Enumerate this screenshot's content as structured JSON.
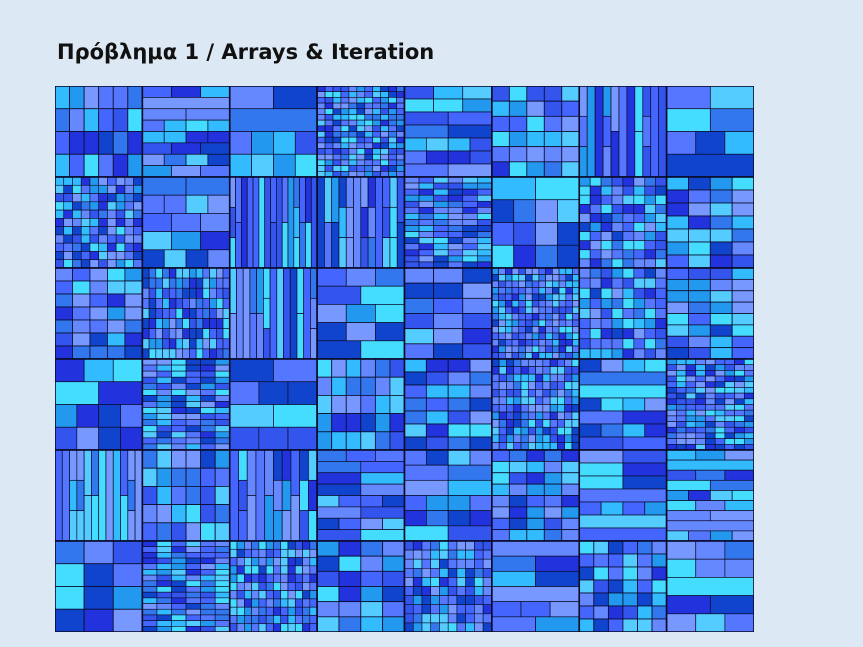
{
  "slide": {
    "title": "Πρόβλημα 1 / Arrays & Iteration"
  },
  "treemap": {
    "palette": [
      "#3355ee",
      "#4466ff",
      "#2233dd",
      "#5577ff",
      "#33bbff",
      "#44ddff",
      "#2299ee",
      "#6688ff",
      "#1144cc",
      "#55ccff",
      "#3377ee",
      "#7799ff"
    ],
    "border_color": "#0a0a2a",
    "grid_cols": 8,
    "grid_rows": 6
  }
}
